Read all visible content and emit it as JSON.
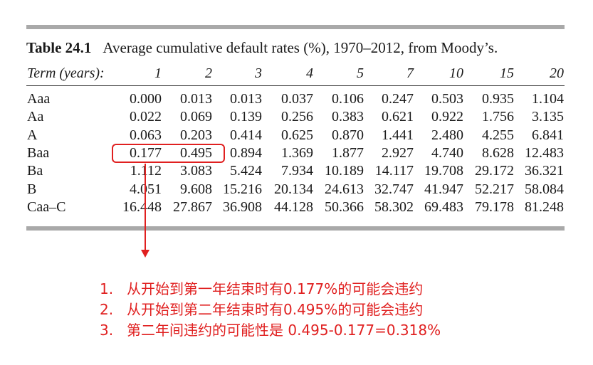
{
  "caption": {
    "label": "Table 24.1",
    "text": "Average cumulative default rates (%), 1970–2012, from Moody’s."
  },
  "header": {
    "term_label": "Term (years):",
    "terms": [
      "1",
      "2",
      "3",
      "4",
      "5",
      "7",
      "10",
      "15",
      "20"
    ]
  },
  "rows": [
    {
      "rating": "Aaa",
      "values": [
        "0.000",
        "0.013",
        "0.013",
        "0.037",
        "0.106",
        "0.247",
        "0.503",
        "0.935",
        "1.104"
      ]
    },
    {
      "rating": "Aa",
      "values": [
        "0.022",
        "0.069",
        "0.139",
        "0.256",
        "0.383",
        "0.621",
        "0.922",
        "1.756",
        "3.135"
      ]
    },
    {
      "rating": "A",
      "values": [
        "0.063",
        "0.203",
        "0.414",
        "0.625",
        "0.870",
        "1.441",
        "2.480",
        "4.255",
        "6.841"
      ]
    },
    {
      "rating": "Baa",
      "values": [
        "0.177",
        "0.495",
        "0.894",
        "1.369",
        "1.877",
        "2.927",
        "4.740",
        "8.628",
        "12.483"
      ]
    },
    {
      "rating": "Ba",
      "values": [
        "1.112",
        "3.083",
        "5.424",
        "7.934",
        "10.189",
        "14.117",
        "19.708",
        "29.172",
        "36.321"
      ]
    },
    {
      "rating": "B",
      "values": [
        "4.051",
        "9.608",
        "15.216",
        "20.134",
        "24.613",
        "32.747",
        "41.947",
        "52.217",
        "58.084"
      ]
    },
    {
      "rating": "Caa–C",
      "values": [
        "16.448",
        "27.867",
        "36.908",
        "44.128",
        "50.366",
        "58.302",
        "69.483",
        "79.178",
        "81.248"
      ]
    }
  ],
  "notes": [
    {
      "num": "1.",
      "text": "从开始到第一年结束时有0.177%的可能会违约"
    },
    {
      "num": "2.",
      "text": "从开始到第二年结束时有0.495%的可能会违约"
    },
    {
      "num": "3.",
      "text": "第二年间违约的可能性是 0.495-0.177=0.318%"
    }
  ],
  "colors": {
    "annotation": "#e02020",
    "rule": "#a9a9a9"
  }
}
